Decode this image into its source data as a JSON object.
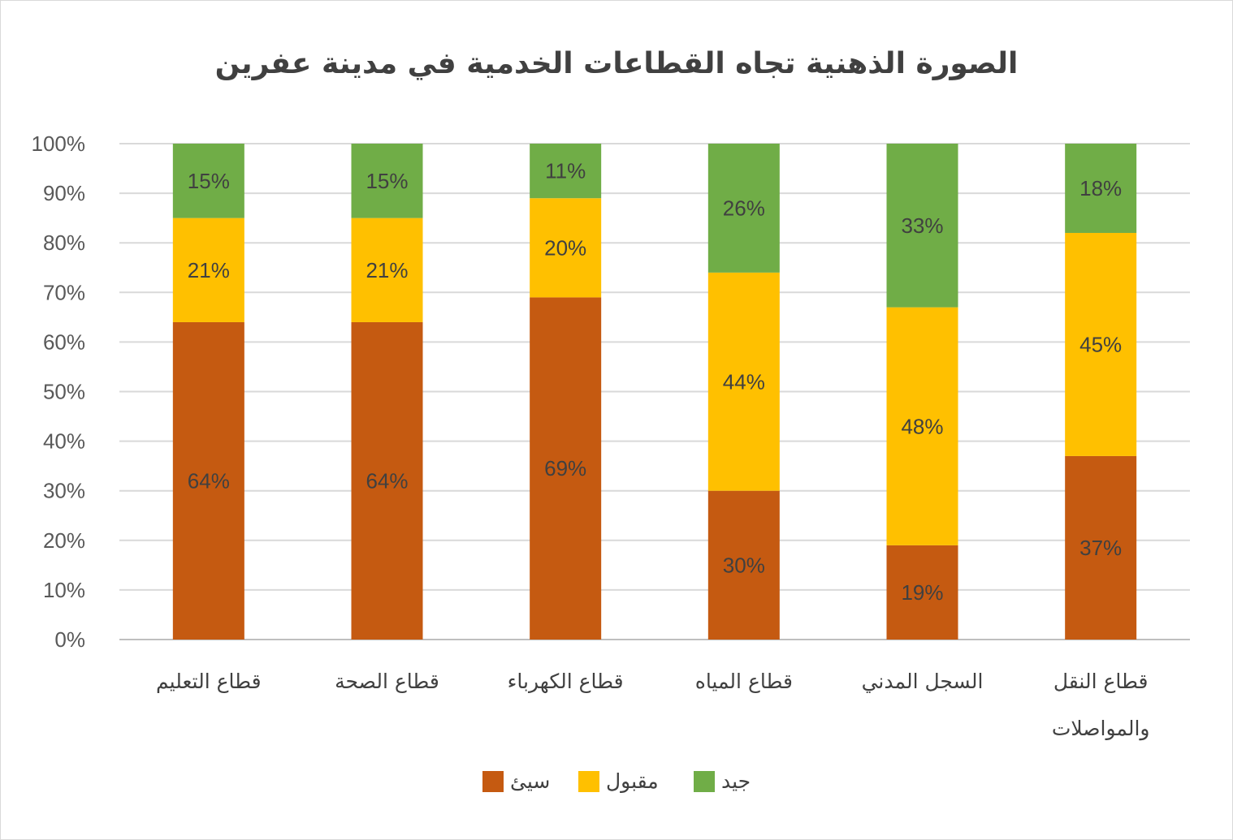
{
  "chart_data": {
    "type": "bar",
    "stacked": true,
    "percent_stacked": true,
    "title": "الصورة الذهنية تجاه القطاعات الخدمية في مدينة عفرين",
    "xlabel": "",
    "ylabel": "",
    "ylim": [
      0,
      100
    ],
    "yticks": [
      "0%",
      "10%",
      "20%",
      "30%",
      "40%",
      "50%",
      "60%",
      "70%",
      "80%",
      "90%",
      "100%"
    ],
    "grid": true,
    "legend_position": "bottom",
    "categories": [
      [
        "قطاع التعليم"
      ],
      [
        "قطاع الصحة"
      ],
      [
        "قطاع الكهرباء"
      ],
      [
        "قطاع المياه"
      ],
      [
        "السجل المدني"
      ],
      [
        "قطاع النقل",
        "والمواصلات"
      ]
    ],
    "series": [
      {
        "name": "سيئ",
        "color": "#C55A11",
        "values": [
          64,
          64,
          69,
          30,
          19,
          37
        ],
        "labels": [
          "64%",
          "64%",
          "69%",
          "30%",
          "19%",
          "37%"
        ]
      },
      {
        "name": "مقبول",
        "color": "#FFC000",
        "values": [
          21,
          21,
          20,
          44,
          48,
          45
        ],
        "labels": [
          "21%",
          "21%",
          "20%",
          "44%",
          "48%",
          "45%"
        ]
      },
      {
        "name": "جيد",
        "color": "#70AD47",
        "values": [
          15,
          15,
          11,
          26,
          33,
          18
        ],
        "labels": [
          "15%",
          "15%",
          "11%",
          "26%",
          "33%",
          "18%"
        ]
      }
    ]
  }
}
